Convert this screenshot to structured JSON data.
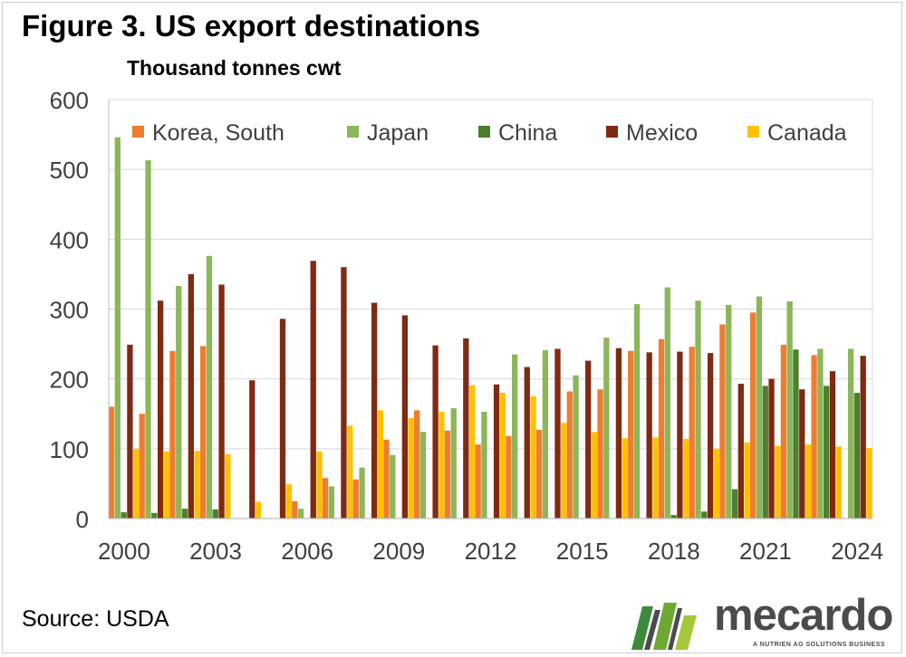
{
  "figure_title": "Figure 3. US export destinations",
  "unit_label": "Thousand tonnes cwt",
  "source": "Source: USDA",
  "logo": {
    "name": "mecardo",
    "tagline": "A NUTRIEN AG SOLUTIONS BUSINESS"
  },
  "chart_data": {
    "type": "bar",
    "title": "Figure 3. US export destinations",
    "ylabel": "Thousand tonnes cwt",
    "xlabel": "",
    "ylim": [
      0,
      600
    ],
    "yticks": [
      0,
      100,
      200,
      300,
      400,
      500,
      600
    ],
    "grid": true,
    "legend": "top",
    "categories": [
      "2000",
      "2001",
      "2002",
      "2003",
      "2004",
      "2005",
      "2006",
      "2007",
      "2008",
      "2009",
      "2010",
      "2011",
      "2012",
      "2013",
      "2014",
      "2015",
      "2016",
      "2017",
      "2018",
      "2019",
      "2020",
      "2021",
      "2022",
      "2023",
      "2024"
    ],
    "xtick_labels": [
      "2000",
      "2003",
      "2006",
      "2009",
      "2012",
      "2015",
      "2018",
      "2021",
      "2024"
    ],
    "series": [
      {
        "name": "Korea, South",
        "color": "#ED7D31",
        "values": [
          160,
          150,
          240,
          247,
          0,
          0,
          25,
          58,
          56,
          113,
          155,
          126,
          106,
          118,
          127,
          182,
          185,
          240,
          257,
          246,
          278,
          295,
          249,
          234,
          0
        ]
      },
      {
        "name": "Japan",
        "color": "#8CB65A",
        "values": [
          546,
          513,
          333,
          376,
          0,
          0,
          14,
          46,
          73,
          91,
          124,
          158,
          153,
          235,
          241,
          205,
          259,
          307,
          331,
          312,
          306,
          318,
          311,
          243,
          243
        ]
      },
      {
        "name": "China",
        "color": "#4E7F2E",
        "values": [
          9,
          8,
          14,
          13,
          0,
          0,
          0,
          0,
          0,
          0,
          0,
          0,
          0,
          0,
          0,
          0,
          0,
          0,
          5,
          10,
          42,
          190,
          242,
          190,
          180
        ]
      },
      {
        "name": "Mexico",
        "color": "#7F2A12",
        "values": [
          249,
          312,
          350,
          335,
          198,
          286,
          369,
          360,
          309,
          291,
          248,
          258,
          192,
          217,
          243,
          226,
          244,
          238,
          239,
          237,
          193,
          200,
          185,
          211,
          233
        ]
      },
      {
        "name": "Canada",
        "color": "#FFC000",
        "values": [
          100,
          96,
          97,
          92,
          24,
          49,
          96,
          133,
          155,
          144,
          153,
          191,
          180,
          175,
          137,
          124,
          115,
          116,
          114,
          100,
          109,
          104,
          106,
          103,
          101
        ]
      }
    ]
  }
}
